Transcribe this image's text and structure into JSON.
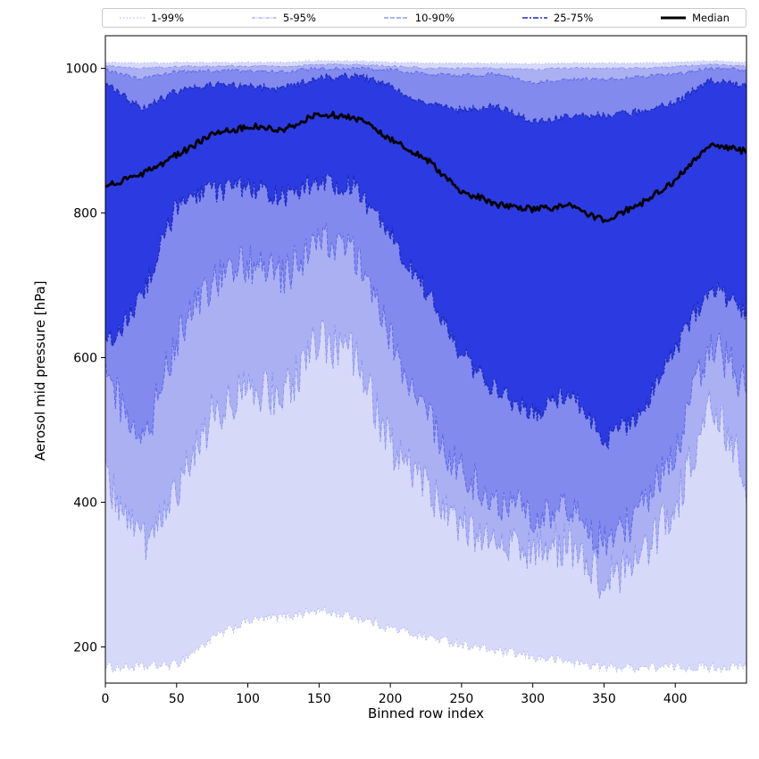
{
  "figure": {
    "background": "#ffffff",
    "xlim": [
      0,
      450
    ],
    "ylim": [
      150,
      1045
    ],
    "x_ticks": [
      0,
      50,
      100,
      150,
      200,
      250,
      300,
      350,
      400
    ],
    "y_ticks": [
      200,
      400,
      600,
      800,
      1000
    ],
    "spine_color": "#000000"
  },
  "legend": {
    "entries": [
      {
        "label": "1-99%",
        "color": "#aab0f2",
        "dash": "1.5 2.3",
        "width": 1
      },
      {
        "label": "5-95%",
        "color": "#8790ee",
        "dash": "4 1.4 1 1.4",
        "width": 1
      },
      {
        "label": "10-90%",
        "color": "#5f6ae8",
        "dash": "5 2",
        "width": 1.1
      },
      {
        "label": "25-75%",
        "color": "#1f2cc0",
        "dash": "6 2 2 2",
        "width": 1.5
      },
      {
        "label": "Median",
        "color": "#000000",
        "dash": "",
        "width": 3
      }
    ]
  },
  "chart_data": {
    "type": "area",
    "title": "",
    "xlabel": "Binned row index",
    "ylabel": "Aerosol mid pressure [hPa]",
    "xlim": [
      0,
      450
    ],
    "ylim": [
      150,
      1045
    ],
    "grid": false,
    "legend_position": "top",
    "x": [
      0,
      25,
      50,
      75,
      100,
      125,
      150,
      175,
      200,
      225,
      250,
      275,
      300,
      325,
      350,
      375,
      400,
      425,
      450
    ],
    "series": [
      {
        "name": "p1",
        "jitter": 7,
        "values": [
          172,
          172,
          176,
          212,
          236,
          242,
          250,
          242,
          226,
          214,
          204,
          194,
          186,
          180,
          172,
          172,
          172,
          172,
          172
        ]
      },
      {
        "name": "p5",
        "jitter": 32,
        "values": [
          430,
          340,
          420,
          520,
          560,
          545,
          625,
          600,
          480,
          420,
          372,
          342,
          330,
          346,
          292,
          322,
          392,
          545,
          430
        ]
      },
      {
        "name": "p10",
        "jitter": 30,
        "values": [
          580,
          470,
          625,
          700,
          730,
          712,
          762,
          748,
          622,
          522,
          442,
          402,
          382,
          402,
          342,
          382,
          472,
          622,
          560
        ]
      },
      {
        "name": "p25",
        "jitter": 16,
        "values": [
          612,
          680,
          812,
          830,
          836,
          822,
          846,
          836,
          772,
          692,
          602,
          556,
          522,
          556,
          482,
          522,
          612,
          700,
          660
        ]
      },
      {
        "name": "median",
        "jitter": 4.5,
        "values": [
          838,
          852,
          880,
          908,
          920,
          915,
          938,
          932,
          903,
          875,
          830,
          812,
          805,
          810,
          790,
          812,
          845,
          895,
          885
        ]
      },
      {
        "name": "p75",
        "jitter": 5,
        "values": [
          978,
          945,
          968,
          978,
          975,
          972,
          988,
          990,
          975,
          952,
          942,
          948,
          925,
          932,
          935,
          940,
          952,
          985,
          975
        ]
      },
      {
        "name": "p90",
        "jitter": 2.5,
        "values": [
          998,
          985,
          995,
          997,
          996,
          995,
          1000,
          1000,
          998,
          992,
          990,
          992,
          980,
          985,
          985,
          988,
          992,
          1000,
          998
        ]
      },
      {
        "name": "p95",
        "jitter": 1.5,
        "values": [
          1003,
          1000,
          1002,
          1003,
          1003,
          1002,
          1005,
          1005,
          1003,
          1000,
          1000,
          1000,
          998,
          1000,
          1000,
          1000,
          1002,
          1005,
          1003
        ]
      },
      {
        "name": "p99",
        "jitter": 1,
        "values": [
          1008,
          1007,
          1008,
          1008,
          1008,
          1008,
          1010,
          1010,
          1008,
          1007,
          1007,
          1007,
          1006,
          1007,
          1007,
          1007,
          1008,
          1010,
          1008
        ]
      }
    ],
    "bands": [
      {
        "name": "1-99%",
        "lower": "p1",
        "upper": "p99",
        "fill": "#4753e3",
        "fill_alpha": 0.22,
        "stroke": "#aab0f2",
        "dash": "1.5 2.3",
        "stroke_width": 0.8
      },
      {
        "name": "5-95%",
        "lower": "p5",
        "upper": "p95",
        "fill": "#4753e3",
        "fill_alpha": 0.3,
        "stroke": "#8790ee",
        "dash": "4 1.4 1 1.4",
        "stroke_width": 0.9
      },
      {
        "name": "10-90%",
        "lower": "p10",
        "upper": "p90",
        "fill": "#4753e3",
        "fill_alpha": 0.4,
        "stroke": "#5f6ae8",
        "dash": "5 2",
        "stroke_width": 1.0
      },
      {
        "name": "25-75%",
        "lower": "p25",
        "upper": "p75",
        "fill": "#2434e0",
        "fill_alpha": 0.92,
        "stroke": "#1f2cc0",
        "dash": "6 2 2 2",
        "stroke_width": 1.4
      }
    ],
    "median": {
      "series": "median",
      "label": "Median",
      "color": "#000000",
      "width": 2.8
    }
  }
}
